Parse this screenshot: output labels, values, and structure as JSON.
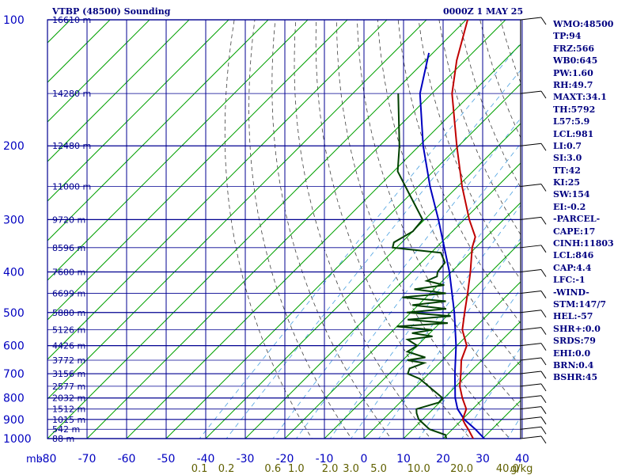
{
  "header": {
    "title": "VTBP (48500) Sounding",
    "timestamp": "0000Z  1 MAY 25"
  },
  "indices": [
    "WMO:48500",
    "TP:94",
    "FRZ:566",
    "WB0:645",
    "PW:1.60",
    "RH:49.7",
    "MAXT:34.1",
    "TH:5792",
    "L57:5.9",
    "LCL:981",
    "LI:0.7",
    "SI:3.0",
    "TT:42",
    "KI:25",
    "SW:154",
    "EI:-0.2",
    "-PARCEL-",
    "CAPE:17",
    "CINH:11803",
    "LCL:846",
    "CAP:4.4",
    "LFC:-1",
    "-WIND-",
    "STM:147/7",
    "HEL:-57",
    "SHR+:0.0",
    "SRDS:79",
    "EHI:0.0",
    "BRN:0.4",
    "BSHR:45"
  ],
  "colors": {
    "background": "#ffffff",
    "isobar": "#000090",
    "isotherm": "#00a000",
    "dry_adiabat": "#404040",
    "mixing_ratio": "#4aa0e0",
    "temperature": "#c00000",
    "dewpoint": "#004000",
    "parcel": "#0000c0",
    "text": "#000080",
    "axis_text": "#0000c0",
    "mixing_text": "#606000"
  },
  "chart_data": {
    "type": "skew-t",
    "pressure_levels": [
      100,
      200,
      300,
      400,
      500,
      600,
      700,
      800,
      900,
      1000
    ],
    "x_ticks": [
      -80,
      -70,
      -60,
      -50,
      -40,
      -30,
      -20,
      -10,
      0,
      10,
      20,
      30,
      40
    ],
    "x_tick_labels": [
      "-80",
      "-70",
      "-60",
      "-50",
      "-40",
      "-30",
      "-20",
      "-10",
      "0",
      "10",
      "20",
      "30",
      "40"
    ],
    "x_unit": "C",
    "y_unit": "mb",
    "height_labels": [
      {
        "p": 100,
        "label": "16610 m"
      },
      {
        "p": 150,
        "label": "14280 m"
      },
      {
        "p": 200,
        "label": "12480 m"
      },
      {
        "p": 250,
        "label": "11000 m"
      },
      {
        "p": 300,
        "label": "9720 m"
      },
      {
        "p": 350,
        "label": "8596 m"
      },
      {
        "p": 400,
        "label": "7600 m"
      },
      {
        "p": 450,
        "label": "6699 m"
      },
      {
        "p": 500,
        "label": "5880 m"
      },
      {
        "p": 550,
        "label": "5126 m"
      },
      {
        "p": 600,
        "label": "4426 m"
      },
      {
        "p": 650,
        "label": "3772 m"
      },
      {
        "p": 700,
        "label": "3156 m"
      },
      {
        "p": 750,
        "label": "2577 m"
      },
      {
        "p": 800,
        "label": "2032 m"
      },
      {
        "p": 850,
        "label": "1512 m"
      },
      {
        "p": 900,
        "label": "1015 m"
      },
      {
        "p": 950,
        "label": "542 m"
      },
      {
        "p": 1000,
        "label": "88 m"
      }
    ],
    "mixing_ratio_labels": [
      "0.1",
      "0.2",
      "0.6",
      "1.0",
      "2.0",
      "3.0",
      "5.0",
      "10.0",
      "20.0",
      "40.0"
    ],
    "mixing_ratio_unit": "g/kg",
    "temperature": [
      {
        "p": 1000,
        "t": 27.6
      },
      {
        "p": 980,
        "t": 26.2
      },
      {
        "p": 950,
        "t": 24.0
      },
      {
        "p": 925,
        "t": 22.0
      },
      {
        "p": 900,
        "t": 20.1
      },
      {
        "p": 850,
        "t": 18.4
      },
      {
        "p": 800,
        "t": 14.6
      },
      {
        "p": 750,
        "t": 11.0
      },
      {
        "p": 700,
        "t": 8.1
      },
      {
        "p": 650,
        "t": 4.8
      },
      {
        "p": 600,
        "t": 2.5
      },
      {
        "p": 550,
        "t": -2.6
      },
      {
        "p": 500,
        "t": -6.4
      },
      {
        "p": 450,
        "t": -10.5
      },
      {
        "p": 400,
        "t": -15.2
      },
      {
        "p": 350,
        "t": -20.9
      },
      {
        "p": 330,
        "t": -22.8
      },
      {
        "p": 300,
        "t": -28.7
      },
      {
        "p": 250,
        "t": -38.9
      },
      {
        "p": 200,
        "t": -50.5
      },
      {
        "p": 150,
        "t": -64.9
      },
      {
        "p": 125,
        "t": -72.1
      },
      {
        "p": 100,
        "t": -79.6
      }
    ],
    "dewpoint": [
      {
        "p": 1000,
        "t": 20.8
      },
      {
        "p": 980,
        "t": 19.7
      },
      {
        "p": 950,
        "t": 14.2
      },
      {
        "p": 900,
        "t": 9.0
      },
      {
        "p": 870,
        "t": 6.9
      },
      {
        "p": 850,
        "t": 5.8
      },
      {
        "p": 820,
        "t": 9.8
      },
      {
        "p": 800,
        "t": 9.6
      },
      {
        "p": 750,
        "t": 3.1
      },
      {
        "p": 720,
        "t": -1.0
      },
      {
        "p": 700,
        "t": -5.3
      },
      {
        "p": 680,
        "t": -6.2
      },
      {
        "p": 660,
        "t": -3.9
      },
      {
        "p": 650,
        "t": -8.8
      },
      {
        "p": 640,
        "t": -5.0
      },
      {
        "p": 620,
        "t": -11.0
      },
      {
        "p": 600,
        "t": -10.0
      },
      {
        "p": 580,
        "t": -14.0
      },
      {
        "p": 570,
        "t": -8.5
      },
      {
        "p": 560,
        "t": -14.5
      },
      {
        "p": 550,
        "t": -10.2
      },
      {
        "p": 540,
        "t": -20.0
      },
      {
        "p": 530,
        "t": -8.0
      },
      {
        "p": 520,
        "t": -19.0
      },
      {
        "p": 510,
        "t": -9.0
      },
      {
        "p": 500,
        "t": -21.0
      },
      {
        "p": 490,
        "t": -12.0
      },
      {
        "p": 480,
        "t": -21.5
      },
      {
        "p": 470,
        "t": -14.0
      },
      {
        "p": 460,
        "t": -26.0
      },
      {
        "p": 450,
        "t": -16.0
      },
      {
        "p": 440,
        "t": -25.0
      },
      {
        "p": 430,
        "t": -18.5
      },
      {
        "p": 420,
        "t": -24.0
      },
      {
        "p": 410,
        "t": -22.5
      },
      {
        "p": 400,
        "t": -23.5
      },
      {
        "p": 380,
        "t": -24.0
      },
      {
        "p": 360,
        "t": -27.5
      },
      {
        "p": 350,
        "t": -41.0
      },
      {
        "p": 340,
        "t": -42.0
      },
      {
        "p": 320,
        "t": -40.0
      },
      {
        "p": 300,
        "t": -40.5
      },
      {
        "p": 260,
        "t": -50.5
      },
      {
        "p": 230,
        "t": -59.0
      },
      {
        "p": 200,
        "t": -65.0
      },
      {
        "p": 150,
        "t": -78.5
      }
    ],
    "parcel": [
      {
        "p": 1000,
        "t": 30.4
      },
      {
        "p": 950,
        "t": 25.8
      },
      {
        "p": 900,
        "t": 20.5
      },
      {
        "p": 850,
        "t": 16.2
      },
      {
        "p": 800,
        "t": 12.8
      },
      {
        "p": 700,
        "t": 6.6
      },
      {
        "p": 600,
        "t": -0.2
      },
      {
        "p": 500,
        "t": -9.0
      },
      {
        "p": 400,
        "t": -20.5
      },
      {
        "p": 300,
        "t": -36.5
      },
      {
        "p": 250,
        "t": -47.0
      },
      {
        "p": 200,
        "t": -59.0
      },
      {
        "p": 150,
        "t": -73.0
      },
      {
        "p": 120,
        "t": -81.0
      }
    ],
    "wind_barbs": [
      {
        "p": 100
      },
      {
        "p": 150
      },
      {
        "p": 200
      },
      {
        "p": 250
      },
      {
        "p": 300
      },
      {
        "p": 350
      },
      {
        "p": 400
      },
      {
        "p": 450
      },
      {
        "p": 500
      },
      {
        "p": 550
      },
      {
        "p": 600
      },
      {
        "p": 650
      },
      {
        "p": 700
      },
      {
        "p": 750
      },
      {
        "p": 800
      },
      {
        "p": 850
      },
      {
        "p": 900
      },
      {
        "p": 950
      },
      {
        "p": 1000
      }
    ]
  }
}
